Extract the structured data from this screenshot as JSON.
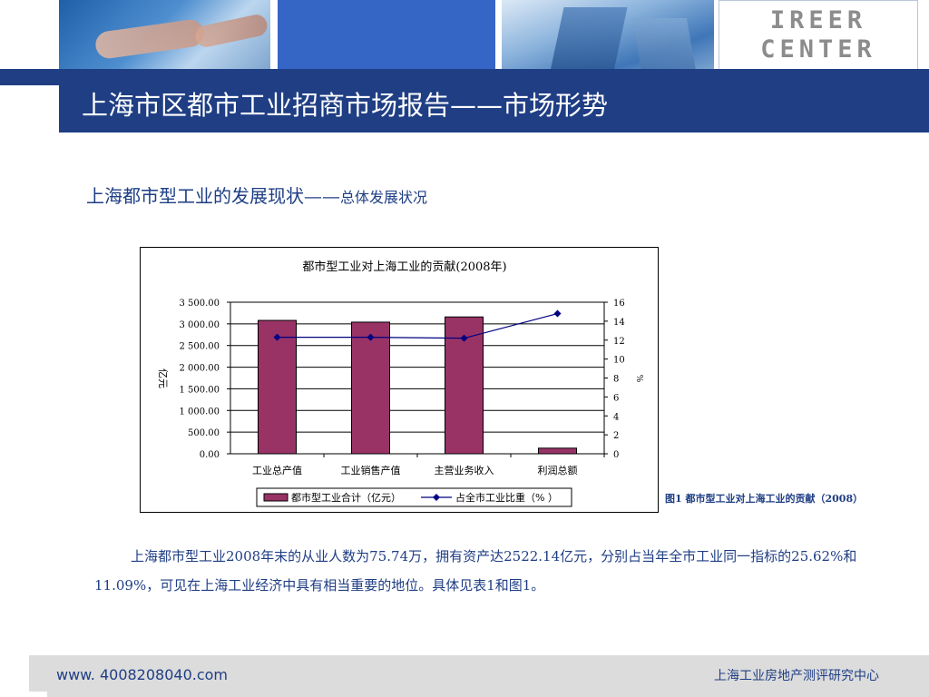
{
  "header": {
    "logo_line1": "IREER",
    "logo_line2": "CENTER",
    "title": "上海市区都市工业招商市场报告——市场形势"
  },
  "section": {
    "title_main": "上海都市型工业的发展现状——",
    "title_sub": "总体发展状况"
  },
  "chart_data": {
    "type": "bar",
    "title": "都市型工业对上海工业的贡献(2008年)",
    "categories": [
      "工业总产值",
      "工业销售产值",
      "主营业务收入",
      "利润总额"
    ],
    "series": [
      {
        "name": "都市型工业合计（亿元）",
        "type": "bar",
        "axis": "left",
        "values": [
          3080,
          3040,
          3160,
          130
        ],
        "color": "#993366"
      },
      {
        "name": "占全市工业比重（% ）",
        "type": "line",
        "axis": "right",
        "values": [
          12.3,
          12.3,
          12.2,
          14.8
        ],
        "color": "#000080"
      }
    ],
    "ylabel": "亿元",
    "y2label": "%",
    "ylim": [
      0,
      3500
    ],
    "y2lim": [
      0,
      16
    ],
    "yticks": [
      "0.00",
      "500.00",
      "1 000.00",
      "1 500.00",
      "2 000.00",
      "2 500.00",
      "3 000.00",
      "3 500.00"
    ],
    "y2ticks": [
      "0",
      "2",
      "4",
      "6",
      "8",
      "10",
      "12",
      "14",
      "16"
    ],
    "grid": true,
    "legend": "bottom"
  },
  "figure_caption": "图1 都市型工业对上海工业的贡献（2008）",
  "body_text": "上海都市型工业2008年末的从业人数为75.74万，拥有资产达2522.14亿元，分别占当年全市工业同一指标的25.62%和11.09%，可见在上海工业经济中具有相当重要的地位。具体见表1和图1。",
  "footer": {
    "url": "www. 4008208040.com",
    "org": "上海工业房地产测评研究中心"
  }
}
